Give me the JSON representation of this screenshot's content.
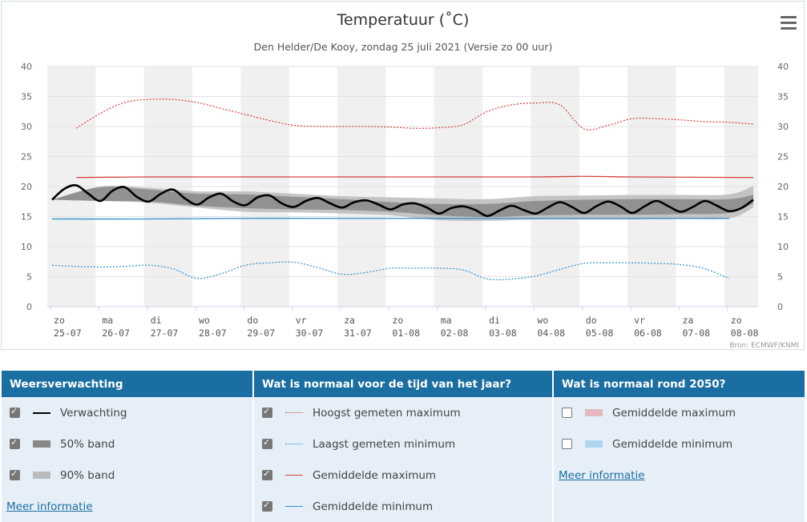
{
  "chart_data": {
    "type": "line",
    "title": "Temperatuur (˚C)",
    "subtitle": "Den Helder/De Kooy, zondag 25 juli 2021 (Versie zo 00 uur)",
    "source": "Bron: ECMWF/KNMI",
    "ylim": [
      0,
      40
    ],
    "yticks": [
      0,
      5,
      10,
      15,
      20,
      25,
      30,
      35,
      40
    ],
    "x_days": [
      {
        "day": "zo",
        "date": "25-07"
      },
      {
        "day": "ma",
        "date": "26-07"
      },
      {
        "day": "di",
        "date": "27-07"
      },
      {
        "day": "wo",
        "date": "28-07"
      },
      {
        "day": "do",
        "date": "29-07"
      },
      {
        "day": "vr",
        "date": "30-07"
      },
      {
        "day": "za",
        "date": "31-07"
      },
      {
        "day": "zo",
        "date": "01-08"
      },
      {
        "day": "ma",
        "date": "02-08"
      },
      {
        "day": "di",
        "date": "03-08"
      },
      {
        "day": "wo",
        "date": "04-08"
      },
      {
        "day": "do",
        "date": "05-08"
      },
      {
        "day": "vr",
        "date": "06-08"
      },
      {
        "day": "za",
        "date": "07-08"
      },
      {
        "day": "zo",
        "date": "08-08"
      }
    ],
    "grid": true,
    "series": [
      {
        "name": "Verwachting",
        "color": "#000000",
        "x": [
          0,
          0.25,
          0.5,
          0.75,
          1,
          1.25,
          1.5,
          1.75,
          2,
          2.25,
          2.5,
          2.75,
          3,
          3.25,
          3.5,
          3.75,
          4,
          4.25,
          4.5,
          4.75,
          5,
          5.25,
          5.5,
          5.75,
          6,
          6.25,
          6.5,
          6.75,
          7,
          7.25,
          7.5,
          7.75,
          8,
          8.25,
          8.5,
          8.75,
          9,
          9.25,
          9.5,
          9.75,
          10,
          10.25,
          10.5,
          10.75,
          11,
          11.25,
          11.5,
          11.75,
          12,
          12.25,
          12.5,
          12.75,
          13,
          13.25,
          13.5,
          13.75,
          14,
          14.25,
          14.5
        ],
        "y": [
          17.8,
          19.6,
          20.2,
          18.8,
          17.6,
          19.3,
          19.9,
          18.3,
          17.5,
          18.8,
          19.5,
          18.0,
          17.0,
          18.2,
          18.8,
          17.5,
          16.9,
          18.2,
          18.5,
          17.2,
          16.6,
          17.6,
          18.1,
          17.2,
          16.5,
          17.4,
          17.7,
          17.0,
          16.2,
          17.0,
          17.2,
          16.5,
          15.5,
          16.4,
          16.7,
          16.1,
          15.1,
          16.0,
          16.8,
          16.1,
          15.5,
          16.5,
          17.4,
          16.6,
          15.6,
          16.7,
          17.5,
          16.7,
          15.6,
          16.7,
          17.6,
          16.7,
          15.8,
          16.6,
          17.6,
          16.8,
          15.9,
          16.4,
          17.8
        ]
      },
      {
        "name": "50% band",
        "color": "#888888",
        "x": [
          0,
          1,
          2,
          3,
          4,
          5,
          6,
          7,
          8,
          9,
          10,
          11,
          12,
          13,
          14,
          14.5
        ],
        "lower": [
          17.8,
          17.6,
          17.5,
          16.8,
          16.4,
          16.2,
          16.1,
          15.8,
          15.2,
          14.9,
          15.2,
          15.3,
          15.3,
          15.4,
          15.6,
          17.2
        ],
        "upper": [
          17.8,
          19.9,
          19.5,
          18.8,
          18.7,
          18.3,
          17.9,
          17.4,
          17.1,
          17.1,
          17.6,
          17.8,
          17.9,
          17.9,
          17.9,
          18.6
        ]
      },
      {
        "name": "90% band",
        "color": "#bbbbbb",
        "x": [
          0,
          1,
          2,
          3,
          4,
          5,
          6,
          7,
          8,
          9,
          10,
          11,
          12,
          13,
          14,
          14.5
        ],
        "lower": [
          17.8,
          17.6,
          17.3,
          16.5,
          15.8,
          15.7,
          15.5,
          15.2,
          14.4,
          14.3,
          14.5,
          14.5,
          14.5,
          14.6,
          14.7,
          16.5
        ],
        "upper": [
          17.8,
          20.0,
          19.8,
          19.2,
          19.2,
          18.8,
          18.4,
          18.2,
          18.0,
          17.9,
          18.4,
          18.5,
          18.6,
          18.6,
          18.7,
          20.1
        ]
      },
      {
        "name": "Hoogst gemeten maximum",
        "color": "#d6403c",
        "x": [
          0.5,
          1,
          1.5,
          2,
          2.5,
          3,
          3.5,
          4,
          4.5,
          5,
          5.5,
          6,
          6.5,
          7,
          7.5,
          8,
          8.5,
          9,
          9.5,
          10,
          10.5,
          11,
          11.5,
          12,
          12.5,
          13,
          13.5,
          14,
          14.5
        ],
        "y": [
          29.7,
          32.2,
          34.0,
          34.5,
          34.5,
          34.0,
          33.0,
          32.0,
          31.0,
          30.2,
          30.0,
          30.0,
          30.0,
          29.9,
          29.7,
          29.8,
          30.3,
          32.5,
          33.6,
          33.9,
          33.6,
          29.6,
          30.2,
          31.3,
          31.3,
          31.1,
          30.8,
          30.7,
          30.4
        ]
      },
      {
        "name": "Laagst gemeten minimum",
        "color": "#2d8fd0",
        "x": [
          0,
          0.5,
          1,
          1.5,
          2,
          2.5,
          3,
          3.5,
          4,
          4.5,
          5,
          5.5,
          6,
          6.5,
          7,
          7.5,
          8,
          8.5,
          9,
          9.5,
          10,
          10.5,
          11,
          11.5,
          12,
          12.5,
          13,
          13.5,
          14
        ],
        "y": [
          6.9,
          6.7,
          6.6,
          6.7,
          6.9,
          6.3,
          4.7,
          5.5,
          6.9,
          7.3,
          7.4,
          6.5,
          5.4,
          5.7,
          6.4,
          6.4,
          6.4,
          6.1,
          4.6,
          4.6,
          5.1,
          6.2,
          7.2,
          7.3,
          7.3,
          7.2,
          7.0,
          6.3,
          4.7
        ]
      },
      {
        "name": "Gemiddelde maximum",
        "color": "#d6403c",
        "x": [
          0.5,
          2,
          4,
          6,
          8,
          10,
          11,
          12,
          14.5
        ],
        "y": [
          21.5,
          21.6,
          21.6,
          21.6,
          21.6,
          21.6,
          21.7,
          21.6,
          21.5
        ]
      },
      {
        "name": "Gemiddelde minimum",
        "color": "#2d8fd0",
        "x": [
          0,
          2,
          4,
          6,
          8,
          10,
          12,
          14
        ],
        "y": [
          14.6,
          14.6,
          14.7,
          14.7,
          14.7,
          14.7,
          14.7,
          14.7
        ]
      }
    ]
  },
  "menu": {
    "icon": "hamburger-menu-icon"
  },
  "legend": {
    "columns": [
      {
        "header": "Weersverwachting",
        "items": [
          {
            "label": "Verwachting",
            "checked": true,
            "symbol": "line",
            "color": "#000000"
          },
          {
            "label": "50% band",
            "checked": true,
            "symbol": "box",
            "color": "#888888"
          },
          {
            "label": "90% band",
            "checked": true,
            "symbol": "box",
            "color": "#bbbbbb"
          }
        ],
        "link": "Meer informatie"
      },
      {
        "header": "Wat is normaal voor de tijd van het jaar?",
        "items": [
          {
            "label": "Hoogst gemeten maximum",
            "checked": true,
            "symbol": "dotted",
            "color": "#d6403c"
          },
          {
            "label": "Laagst gemeten minimum",
            "checked": true,
            "symbol": "dotted",
            "color": "#2d8fd0"
          },
          {
            "label": "Gemiddelde maximum",
            "checked": true,
            "symbol": "line",
            "color": "#d6403c"
          },
          {
            "label": "Gemiddelde minimum",
            "checked": true,
            "symbol": "line",
            "color": "#2d8fd0"
          }
        ]
      },
      {
        "header": "Wat is normaal rond 2050?",
        "items": [
          {
            "label": "Gemiddelde maximum",
            "checked": false,
            "symbol": "box",
            "color": "#e5b8bf"
          },
          {
            "label": "Gemiddelde minimum",
            "checked": false,
            "symbol": "box",
            "color": "#aed4ef"
          }
        ],
        "link": "Meer informatie"
      }
    ]
  }
}
